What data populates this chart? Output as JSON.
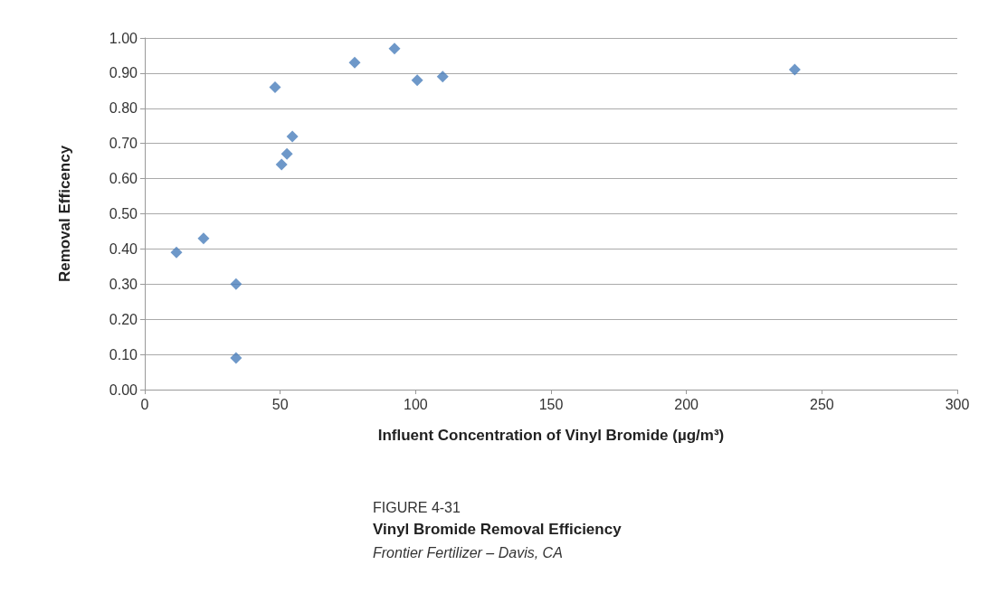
{
  "chart_data": {
    "type": "scatter",
    "title": "Vinyl Bromide Removal Efficiency",
    "subtitle": "Frontier Fertilizer – Davis, CA",
    "annotations": [
      "FIGURE 4-31"
    ],
    "xlabel": "Influent Concentration of Vinyl Bromide (µg/m³)",
    "ylabel": "Removal Efficency",
    "x": [
      11.7,
      21.7,
      33.7,
      33.7,
      48.1,
      50.5,
      52.5,
      54.5,
      77.5,
      92.2,
      100.6,
      110,
      240
    ],
    "series": [
      {
        "color": "#4a7ebb",
        "values": [
          0.39,
          0.43,
          0.3,
          0.09,
          0.86,
          0.64,
          0.67,
          0.72,
          0.93,
          0.97,
          0.88,
          0.89,
          0.91
        ]
      }
    ],
    "xlim": [
      0,
      300
    ],
    "xticks": [
      0,
      50,
      100,
      150,
      200,
      250,
      300
    ],
    "ylim": [
      0,
      1
    ],
    "yticks": [
      {
        "value": 0,
        "label": "0.00"
      },
      {
        "value": 0.1,
        "label": "0.10"
      },
      {
        "value": 0.2,
        "label": "0.20"
      },
      {
        "value": 0.3,
        "label": "0.30"
      },
      {
        "value": 0.4,
        "label": "0.40"
      },
      {
        "value": 0.5,
        "label": "0.50"
      },
      {
        "value": 0.6,
        "label": "0.60"
      },
      {
        "value": 0.7,
        "label": "0.70"
      },
      {
        "value": 0.8,
        "label": "0.80"
      },
      {
        "value": 0.9,
        "label": "0.90"
      },
      {
        "value": 1,
        "label": "1.00"
      }
    ],
    "grid": "y",
    "marker": "diamond"
  }
}
